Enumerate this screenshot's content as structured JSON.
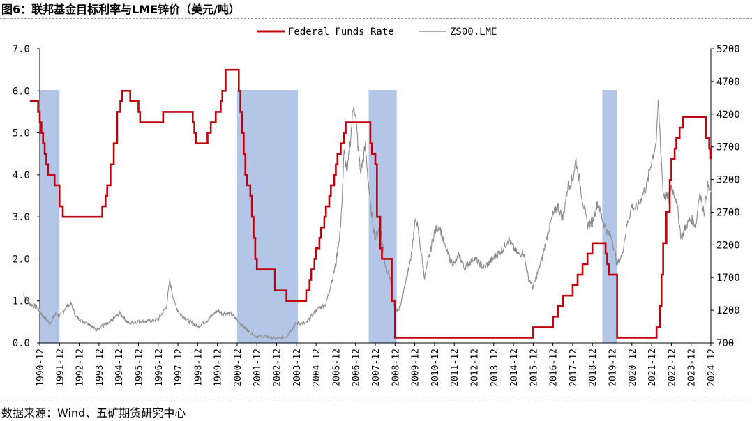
{
  "title": "图6：联邦基金目标利率与LME锌价（美元/吨）",
  "source": "数据来源：Wind、五矿期货研究中心",
  "colors": {
    "fed": "#c0000c",
    "zinc": "#8c8c8c",
    "shade": "#b4c6e7"
  },
  "chart_data": {
    "type": "line",
    "x_ticks": [
      "1990-12",
      "1991-12",
      "1992-12",
      "1993-12",
      "1994-12",
      "1995-12",
      "1996-12",
      "1997-12",
      "1998-12",
      "1999-12",
      "2000-12",
      "2001-12",
      "2002-12",
      "2003-12",
      "2004-12",
      "2005-12",
      "2006-12",
      "2007-12",
      "2008-12",
      "2009-12",
      "2010-12",
      "2011-12",
      "2012-12",
      "2013-12",
      "2014-12",
      "2015-12",
      "2016-12",
      "2017-12",
      "2018-12",
      "2019-12",
      "2020-12",
      "2021-12",
      "2022-12",
      "2023-12",
      "2024-12"
    ],
    "y_left": {
      "ticks": [
        "0.0",
        "1.0",
        "2.0",
        "3.0",
        "4.0",
        "5.0",
        "6.0",
        "7.0"
      ],
      "range": [
        0,
        7
      ]
    },
    "y_right": {
      "ticks": [
        "700",
        "1200",
        "1700",
        "2200",
        "2700",
        "3200",
        "3700",
        "4200",
        "4700",
        "5200"
      ],
      "range": [
        700,
        5200
      ]
    },
    "legend_position": "top-center",
    "shaded_periods": [
      [
        "1990-02",
        "1991-12"
      ],
      [
        "2000-12",
        "2004-01"
      ],
      [
        "2007-08",
        "2009-01"
      ],
      [
        "2019-06",
        "2020-03"
      ]
    ],
    "series": [
      {
        "name": "Federal Funds Rate",
        "axis": "left",
        "points": [
          [
            "1990-06",
            5.75
          ],
          [
            "1990-10",
            5.75
          ],
          [
            "1990-11",
            5.5
          ],
          [
            "1990-12",
            5.25
          ],
          [
            "1991-01",
            5.0
          ],
          [
            "1991-02",
            4.75
          ],
          [
            "1991-03",
            4.5
          ],
          [
            "1991-04",
            4.25
          ],
          [
            "1991-05",
            4.0
          ],
          [
            "1991-09",
            3.75
          ],
          [
            "1991-12",
            3.25
          ],
          [
            "1992-02",
            3.0
          ],
          [
            "1993-12",
            3.0
          ],
          [
            "1994-02",
            3.25
          ],
          [
            "1994-04",
            3.5
          ],
          [
            "1994-05",
            3.75
          ],
          [
            "1994-07",
            4.25
          ],
          [
            "1994-09",
            4.75
          ],
          [
            "1994-11",
            5.5
          ],
          [
            "1995-01",
            5.75
          ],
          [
            "1995-02",
            6.0
          ],
          [
            "1995-07",
            5.75
          ],
          [
            "1995-12",
            5.5
          ],
          [
            "1996-01",
            5.25
          ],
          [
            "1997-03",
            5.5
          ],
          [
            "1998-09",
            5.25
          ],
          [
            "1998-10",
            5.0
          ],
          [
            "1998-11",
            4.75
          ],
          [
            "1999-06",
            5.0
          ],
          [
            "1999-08",
            5.25
          ],
          [
            "1999-11",
            5.5
          ],
          [
            "2000-02",
            5.75
          ],
          [
            "2000-03",
            6.0
          ],
          [
            "2000-05",
            6.5
          ],
          [
            "2001-01",
            6.0
          ],
          [
            "2001-02",
            5.5
          ],
          [
            "2001-03",
            5.0
          ],
          [
            "2001-04",
            4.5
          ],
          [
            "2001-05",
            4.0
          ],
          [
            "2001-06",
            3.75
          ],
          [
            "2001-08",
            3.5
          ],
          [
            "2001-09",
            3.0
          ],
          [
            "2001-10",
            2.5
          ],
          [
            "2001-11",
            2.0
          ],
          [
            "2001-12",
            1.75
          ],
          [
            "2002-11",
            1.25
          ],
          [
            "2003-06",
            1.0
          ],
          [
            "2004-06",
            1.25
          ],
          [
            "2004-08",
            1.5
          ],
          [
            "2004-09",
            1.75
          ],
          [
            "2004-11",
            2.0
          ],
          [
            "2004-12",
            2.25
          ],
          [
            "2005-02",
            2.5
          ],
          [
            "2005-03",
            2.75
          ],
          [
            "2005-05",
            3.0
          ],
          [
            "2005-06",
            3.25
          ],
          [
            "2005-08",
            3.5
          ],
          [
            "2005-09",
            3.75
          ],
          [
            "2005-11",
            4.0
          ],
          [
            "2005-12",
            4.25
          ],
          [
            "2006-01",
            4.5
          ],
          [
            "2006-03",
            4.75
          ],
          [
            "2006-05",
            5.0
          ],
          [
            "2006-06",
            5.25
          ],
          [
            "2007-09",
            4.75
          ],
          [
            "2007-10",
            4.5
          ],
          [
            "2007-12",
            4.25
          ],
          [
            "2008-01",
            3.0
          ],
          [
            "2008-03",
            2.25
          ],
          [
            "2008-04",
            2.0
          ],
          [
            "2008-10",
            1.0
          ],
          [
            "2008-12",
            0.125
          ],
          [
            "2015-12",
            0.375
          ],
          [
            "2016-12",
            0.625
          ],
          [
            "2017-03",
            0.875
          ],
          [
            "2017-06",
            1.125
          ],
          [
            "2017-12",
            1.375
          ],
          [
            "2018-03",
            1.625
          ],
          [
            "2018-06",
            1.875
          ],
          [
            "2018-09",
            2.125
          ],
          [
            "2018-12",
            2.375
          ],
          [
            "2019-08",
            2.125
          ],
          [
            "2019-09",
            1.875
          ],
          [
            "2019-10",
            1.625
          ],
          [
            "2020-03",
            0.125
          ],
          [
            "2022-03",
            0.375
          ],
          [
            "2022-05",
            0.875
          ],
          [
            "2022-06",
            1.625
          ],
          [
            "2022-07",
            2.375
          ],
          [
            "2022-09",
            3.125
          ],
          [
            "2022-11",
            3.875
          ],
          [
            "2022-12",
            4.375
          ],
          [
            "2023-02",
            4.625
          ],
          [
            "2023-03",
            4.875
          ],
          [
            "2023-05",
            5.125
          ],
          [
            "2023-07",
            5.375
          ],
          [
            "2024-09",
            4.875
          ],
          [
            "2024-11",
            4.625
          ],
          [
            "2024-12",
            4.375
          ]
        ]
      },
      {
        "name": "ZS00.LME",
        "axis": "right",
        "points": [
          [
            "1990-02",
            1450
          ],
          [
            "1990-06",
            1300
          ],
          [
            "1990-10",
            1250
          ],
          [
            "1991-01",
            1150
          ],
          [
            "1991-06",
            1000
          ],
          [
            "1991-10",
            1150
          ],
          [
            "1991-12",
            1100
          ],
          [
            "1992-04",
            1250
          ],
          [
            "1992-07",
            1300
          ],
          [
            "1992-10",
            1100
          ],
          [
            "1993-01",
            1050
          ],
          [
            "1993-06",
            1000
          ],
          [
            "1993-10",
            900
          ],
          [
            "1994-01",
            950
          ],
          [
            "1994-06",
            1000
          ],
          [
            "1994-10",
            1100
          ],
          [
            "1995-01",
            1150
          ],
          [
            "1995-06",
            1000
          ],
          [
            "1995-12",
            1030
          ],
          [
            "1996-06",
            1030
          ],
          [
            "1996-12",
            1060
          ],
          [
            "1997-05",
            1250
          ],
          [
            "1997-07",
            1650
          ],
          [
            "1997-10",
            1300
          ],
          [
            "1998-01",
            1150
          ],
          [
            "1998-06",
            1050
          ],
          [
            "1998-12",
            950
          ],
          [
            "1999-06",
            1050
          ],
          [
            "1999-12",
            1200
          ],
          [
            "2000-03",
            1150
          ],
          [
            "2000-08",
            1150
          ],
          [
            "2000-12",
            1050
          ],
          [
            "2001-06",
            900
          ],
          [
            "2001-12",
            800
          ],
          [
            "2002-06",
            800
          ],
          [
            "2002-12",
            760
          ],
          [
            "2003-06",
            800
          ],
          [
            "2003-12",
            1000
          ],
          [
            "2004-06",
            1000
          ],
          [
            "2004-12",
            1200
          ],
          [
            "2005-06",
            1300
          ],
          [
            "2005-12",
            1900
          ],
          [
            "2006-03",
            2500
          ],
          [
            "2006-05",
            3600
          ],
          [
            "2006-07",
            3300
          ],
          [
            "2006-11",
            4400
          ],
          [
            "2006-12",
            4150
          ],
          [
            "2007-03",
            3300
          ],
          [
            "2007-06",
            3700
          ],
          [
            "2007-09",
            2800
          ],
          [
            "2007-12",
            2300
          ],
          [
            "2008-03",
            2500
          ],
          [
            "2008-06",
            1900
          ],
          [
            "2008-09",
            1700
          ],
          [
            "2008-12",
            1150
          ],
          [
            "2009-03",
            1250
          ],
          [
            "2009-06",
            1600
          ],
          [
            "2009-09",
            1900
          ],
          [
            "2009-12",
            2500
          ],
          [
            "2010-01",
            2600
          ],
          [
            "2010-06",
            1700
          ],
          [
            "2010-12",
            2400
          ],
          [
            "2011-03",
            2500
          ],
          [
            "2011-06",
            2200
          ],
          [
            "2011-09",
            2000
          ],
          [
            "2011-12",
            1900
          ],
          [
            "2012-03",
            2050
          ],
          [
            "2012-06",
            1850
          ],
          [
            "2012-12",
            2000
          ],
          [
            "2013-06",
            1850
          ],
          [
            "2013-12",
            2000
          ],
          [
            "2014-06",
            2150
          ],
          [
            "2014-09",
            2300
          ],
          [
            "2014-12",
            2150
          ],
          [
            "2015-03",
            2050
          ],
          [
            "2015-06",
            2100
          ],
          [
            "2015-09",
            1700
          ],
          [
            "2015-12",
            1550
          ],
          [
            "2016-06",
            2050
          ],
          [
            "2016-09",
            2400
          ],
          [
            "2016-12",
            2650
          ],
          [
            "2017-03",
            2800
          ],
          [
            "2017-06",
            2600
          ],
          [
            "2017-09",
            3100
          ],
          [
            "2017-12",
            3200
          ],
          [
            "2018-02",
            3500
          ],
          [
            "2018-06",
            2900
          ],
          [
            "2018-09",
            2500
          ],
          [
            "2018-12",
            2550
          ],
          [
            "2019-03",
            2850
          ],
          [
            "2019-06",
            2600
          ],
          [
            "2019-09",
            2400
          ],
          [
            "2019-12",
            2300
          ],
          [
            "2020-03",
            1900
          ],
          [
            "2020-06",
            2050
          ],
          [
            "2020-09",
            2500
          ],
          [
            "2020-12",
            2800
          ],
          [
            "2021-03",
            2750
          ],
          [
            "2021-06",
            2950
          ],
          [
            "2021-09",
            3100
          ],
          [
            "2021-12",
            3500
          ],
          [
            "2022-03",
            3800
          ],
          [
            "2022-04",
            4400
          ],
          [
            "2022-07",
            3000
          ],
          [
            "2022-10",
            2900
          ],
          [
            "2022-12",
            3100
          ],
          [
            "2023-03",
            2900
          ],
          [
            "2023-06",
            2300
          ],
          [
            "2023-09",
            2500
          ],
          [
            "2023-12",
            2600
          ],
          [
            "2024-03",
            2500
          ],
          [
            "2024-05",
            3000
          ],
          [
            "2024-08",
            2700
          ],
          [
            "2024-10",
            3100
          ],
          [
            "2024-12",
            3000
          ]
        ]
      }
    ]
  }
}
